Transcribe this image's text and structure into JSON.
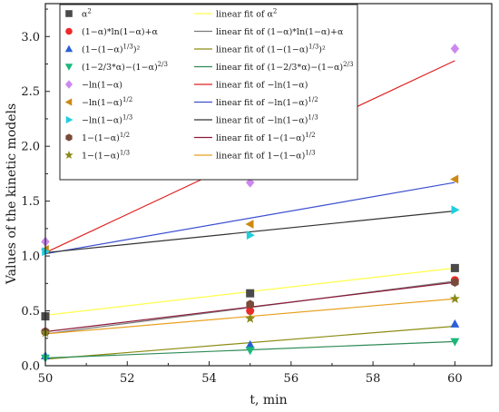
{
  "chart_data": {
    "type": "scatter",
    "xlabel": "t, min",
    "ylabel": "Values of the kinetic models",
    "xlim": [
      50,
      60.9
    ],
    "ylim": [
      0,
      3.3
    ],
    "xticks": [
      50,
      52,
      54,
      56,
      58,
      60
    ],
    "yticks": [
      0.0,
      0.5,
      1.0,
      1.5,
      2.0,
      2.5,
      3.0
    ],
    "xtick_labels": [
      "50",
      "52",
      "54",
      "56",
      "58",
      "60"
    ],
    "ytick_labels": [
      "0.0",
      "0.5",
      "1.0",
      "1.5",
      "2.0",
      "2.5",
      "3.0"
    ],
    "legend_position": "top-left",
    "x": [
      50,
      55,
      60
    ],
    "series": [
      {
        "name": "α²",
        "marker": "square",
        "color": "#4a4a4a",
        "values": [
          0.45,
          0.66,
          0.89
        ],
        "fit_name": "linear fit of α²",
        "fit_color": "#ffff4d",
        "fit": [
          0.46,
          0.89
        ]
      },
      {
        "name": "(1−α)*ln(1−α)+α",
        "marker": "circle",
        "color": "#ee2a2a",
        "values": [
          0.31,
          0.5,
          0.78
        ],
        "fit_name": "linear fit of (1−α)*ln(1−α)+α",
        "fit_color": "#7a7a7a",
        "fit": [
          0.29,
          0.77
        ]
      },
      {
        "name": "(1−(1−α)^(1/3))²",
        "marker": "triangle-up",
        "color": "#2a5fd6",
        "values": [
          0.09,
          0.19,
          0.38
        ],
        "fit_name": "linear fit of (1−(1−α)^(1/3))²",
        "fit_color": "#8c8c14",
        "fit": [
          0.06,
          0.36
        ]
      },
      {
        "name": "(1−2/3*α)−(1−α)^(2/3)",
        "marker": "triangle-down",
        "color": "#19b87a",
        "values": [
          0.07,
          0.14,
          0.22
        ],
        "fit_name": "linear fit of (1−2/3*α)−(1−α)^(2/3)",
        "fit_color": "#2e8b57",
        "fit": [
          0.07,
          0.22
        ]
      },
      {
        "name": "−ln(1−α)",
        "marker": "diamond",
        "color": "#cc88ee",
        "values": [
          1.13,
          1.67,
          2.89
        ],
        "fit_name": "linear fit of −ln(1−α)",
        "fit_color": "#e02020",
        "fit": [
          1.03,
          2.78
        ]
      },
      {
        "name": "−ln(1−α)^(1/2)",
        "marker": "triangle-left",
        "color": "#cc8a12",
        "values": [
          1.06,
          1.29,
          1.7
        ],
        "fit_name": "linear fit of −ln(1−α)^(1/2)",
        "fit_color": "#3b4fd0",
        "fit": [
          1.02,
          1.67
        ]
      },
      {
        "name": "−ln(1−α)^(1/3)",
        "marker": "triangle-right",
        "color": "#1ecfe0",
        "values": [
          1.04,
          1.19,
          1.42
        ],
        "fit_name": "linear fit of −ln(1−α)^(1/3)",
        "fit_color": "#333333",
        "fit": [
          1.03,
          1.41
        ]
      },
      {
        "name": "1−(1−α)^(1/2)",
        "marker": "hexagon",
        "color": "#7a4a3a",
        "values": [
          0.31,
          0.56,
          0.76
        ],
        "fit_name": "linear fit of 1−(1−α)^(1/2)",
        "fit_color": "#8b1a3a",
        "fit": [
          0.31,
          0.76
        ]
      },
      {
        "name": "1−(1−α)^(1/3)",
        "marker": "star",
        "color": "#8a8a1a",
        "values": [
          0.3,
          0.43,
          0.61
        ],
        "fit_name": "linear fit of 1−(1−α)^(1/3)",
        "fit_color": "#e8a020",
        "fit": [
          0.29,
          0.61
        ]
      }
    ]
  },
  "legend": {
    "items": [
      {
        "label": "α",
        "sup": "2",
        "tail": "",
        "fit_label": "linear fit of α",
        "fit_sup": "2",
        "fit_tail": ""
      },
      {
        "label": "(1−α)*ln(1−α)+α",
        "sup": "",
        "tail": "",
        "fit_label": "linear fit of (1−α)*ln(1−α)+α",
        "fit_sup": "",
        "fit_tail": ""
      },
      {
        "label": "(1−(1−α)",
        "sup": "1/3",
        "tail": ")²",
        "fit_label": "linear fit of (1−(1−α)",
        "fit_sup": "1/3",
        "fit_tail": ")²"
      },
      {
        "label": "(1−2/3*α)−(1−α)",
        "sup": "2/3",
        "tail": "",
        "fit_label": "linear fit of (1−2/3*α)−(1−α)",
        "fit_sup": "2/3",
        "fit_tail": ""
      },
      {
        "label": "−ln(1−α)",
        "sup": "",
        "tail": "",
        "fit_label": "linear fit of −ln(1−α)",
        "fit_sup": "",
        "fit_tail": ""
      },
      {
        "label": "−ln(1−α)",
        "sup": "1/2",
        "tail": "",
        "fit_label": "linear fit of −ln(1−α)",
        "fit_sup": "1/2",
        "fit_tail": ""
      },
      {
        "label": "−ln(1−α)",
        "sup": "1/3",
        "tail": "",
        "fit_label": "linear fit of −ln(1−α)",
        "fit_sup": "1/3",
        "fit_tail": ""
      },
      {
        "label": "1−(1−α)",
        "sup": "1/2",
        "tail": "",
        "fit_label": "linear fit of 1−(1−α)",
        "fit_sup": "1/2",
        "fit_tail": ""
      },
      {
        "label": "1−(1−α)",
        "sup": "1/3",
        "tail": "",
        "fit_label": "linear fit of 1−(1−α)",
        "fit_sup": "1/3",
        "fit_tail": ""
      }
    ]
  }
}
